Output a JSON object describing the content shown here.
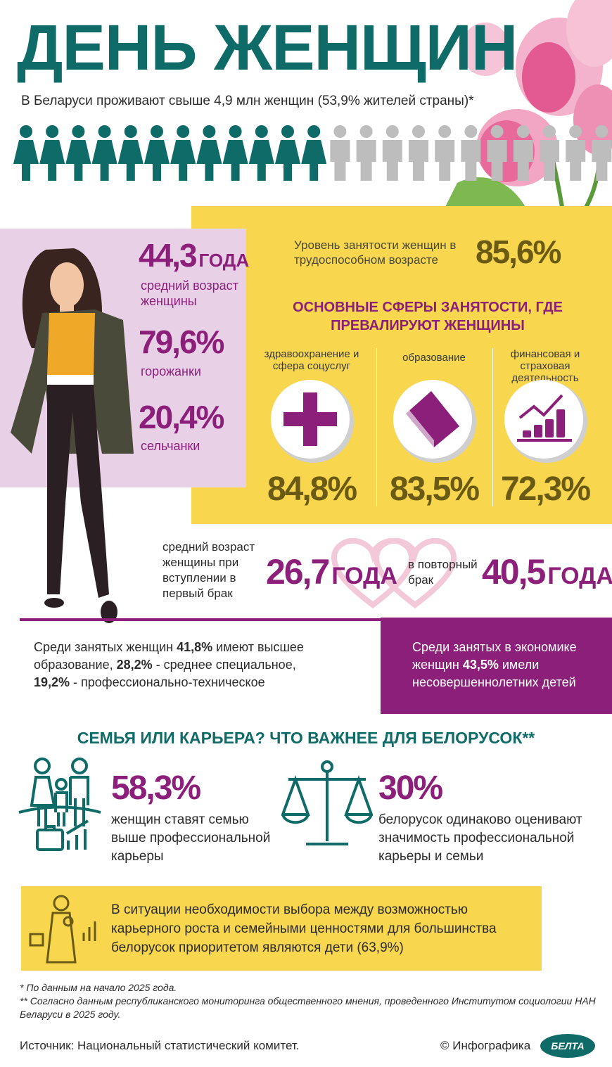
{
  "header": {
    "title": "ДЕНЬ ЖЕНЩИН",
    "subtitle": "В Беларуси проживают свыше 4,9 млн женщин (53,9% жителей страны)*"
  },
  "profile": {
    "age_value": "44,3",
    "age_unit": "ГОДА",
    "age_label": "средний возраст женщины",
    "urban_value": "79,6%",
    "urban_label": "горожанки",
    "rural_value": "20,4%",
    "rural_label": "сельчанки"
  },
  "employment": {
    "label": "Уровень занятости женщин в трудоспособном возрасте",
    "value": "85,6%"
  },
  "spheres": {
    "title": "ОСНОВНЫЕ СФЕРЫ ЗАНЯТОСТИ, ГДЕ ПРЕВАЛИРУЮТ ЖЕНЩИНЫ",
    "items": [
      {
        "label": "здравоохранение и сфера соцуслуг",
        "value": "84,8%"
      },
      {
        "label": "образование",
        "value": "83,5%"
      },
      {
        "label": "финансовая и страховая деятельность",
        "value": "72,3%"
      }
    ]
  },
  "marriage": {
    "first_label": "средний возраст женщины при вступлении в первый брак",
    "first_value": "26,7",
    "first_unit": "ГОДА",
    "second_label": "в повторный брак",
    "second_value": "40,5",
    "second_unit": "ГОДА"
  },
  "education": {
    "parts": [
      "Среди занятых женщин ",
      "41,8%",
      " имеют высшее образование, ",
      "28,2%",
      " - среднее специальное, ",
      "19,2%",
      " - профессионально-техническое"
    ]
  },
  "children": {
    "parts": [
      "Среди занятых в экономике женщин ",
      "43,5%",
      " имели несовершеннолетних детей"
    ]
  },
  "survey": {
    "title": "СЕМЬЯ ИЛИ КАРЬЕРА? ЧТО ВАЖНЕЕ ДЛЯ БЕЛОРУСОК**",
    "items": [
      {
        "value": "58,3%",
        "text": "женщин ставят семью выше профессиональной карьеры"
      },
      {
        "value": "30%",
        "text": "белорусок одинаково оценивают значимость профессиональной карьеры и семьи"
      }
    ]
  },
  "priority": {
    "text": "В ситуации необходимости выбора между возможностью карьерного роста и семейными ценностями для большинства белорусок приоритетом являются дети (63,9%)"
  },
  "footnotes": [
    "* По данным на начало 2025 года.",
    "** Согласно данным республиканского мониторинга общественного мнения, проведенного Институтом социологии НАН Беларуси в 2025 году."
  ],
  "footer": {
    "source": "Источник: Национальный статистический комитет.",
    "credit": "© Инфографика",
    "logo": "БЕЛТА"
  }
}
